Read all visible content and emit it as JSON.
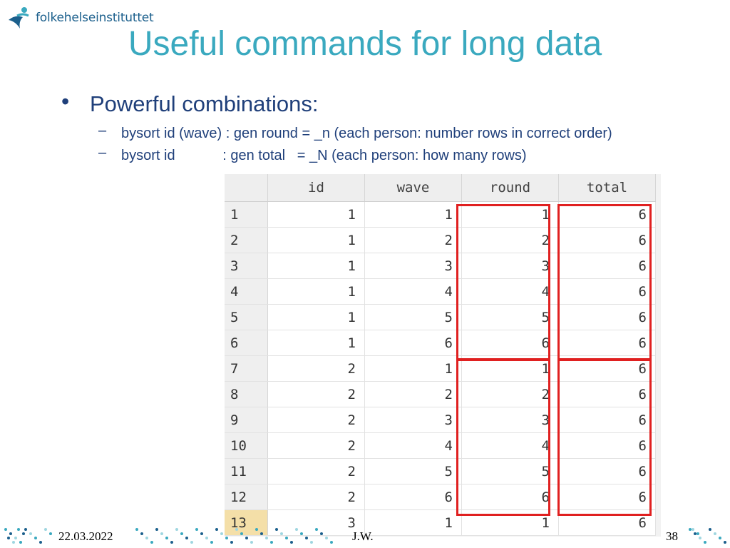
{
  "header": {
    "logo_text": "folkehelseinstituttet"
  },
  "slide": {
    "title": "Useful commands for long data",
    "bullet": "Powerful combinations:",
    "sub_bullets": [
      "bysort id (wave) : gen round = _n (each person: number rows in correct order)",
      "bysort id            : gen total   = _N (each person: how many rows)"
    ]
  },
  "table": {
    "columns": [
      "id",
      "wave",
      "round",
      "total"
    ],
    "rows": [
      {
        "n": "1",
        "id": "1",
        "wave": "1",
        "round": "1",
        "total": "6"
      },
      {
        "n": "2",
        "id": "1",
        "wave": "2",
        "round": "2",
        "total": "6"
      },
      {
        "n": "3",
        "id": "1",
        "wave": "3",
        "round": "3",
        "total": "6"
      },
      {
        "n": "4",
        "id": "1",
        "wave": "4",
        "round": "4",
        "total": "6"
      },
      {
        "n": "5",
        "id": "1",
        "wave": "5",
        "round": "5",
        "total": "6"
      },
      {
        "n": "6",
        "id": "1",
        "wave": "6",
        "round": "6",
        "total": "6"
      },
      {
        "n": "7",
        "id": "2",
        "wave": "1",
        "round": "1",
        "total": "6"
      },
      {
        "n": "8",
        "id": "2",
        "wave": "2",
        "round": "2",
        "total": "6"
      },
      {
        "n": "9",
        "id": "2",
        "wave": "3",
        "round": "3",
        "total": "6"
      },
      {
        "n": "10",
        "id": "2",
        "wave": "4",
        "round": "4",
        "total": "6"
      },
      {
        "n": "11",
        "id": "2",
        "wave": "5",
        "round": "5",
        "total": "6"
      },
      {
        "n": "12",
        "id": "2",
        "wave": "6",
        "round": "6",
        "total": "6"
      },
      {
        "n": "13",
        "id": "3",
        "wave": "1",
        "round": "1",
        "total": "6"
      }
    ],
    "selected_row": "13"
  },
  "footer": {
    "date": "22.03.2022",
    "author": "J.W.",
    "page": "38"
  },
  "colors": {
    "title": "#3aa9bf",
    "text": "#1f3f7a",
    "highlight": "#e02020",
    "selected_row": "#f4dfa8"
  }
}
